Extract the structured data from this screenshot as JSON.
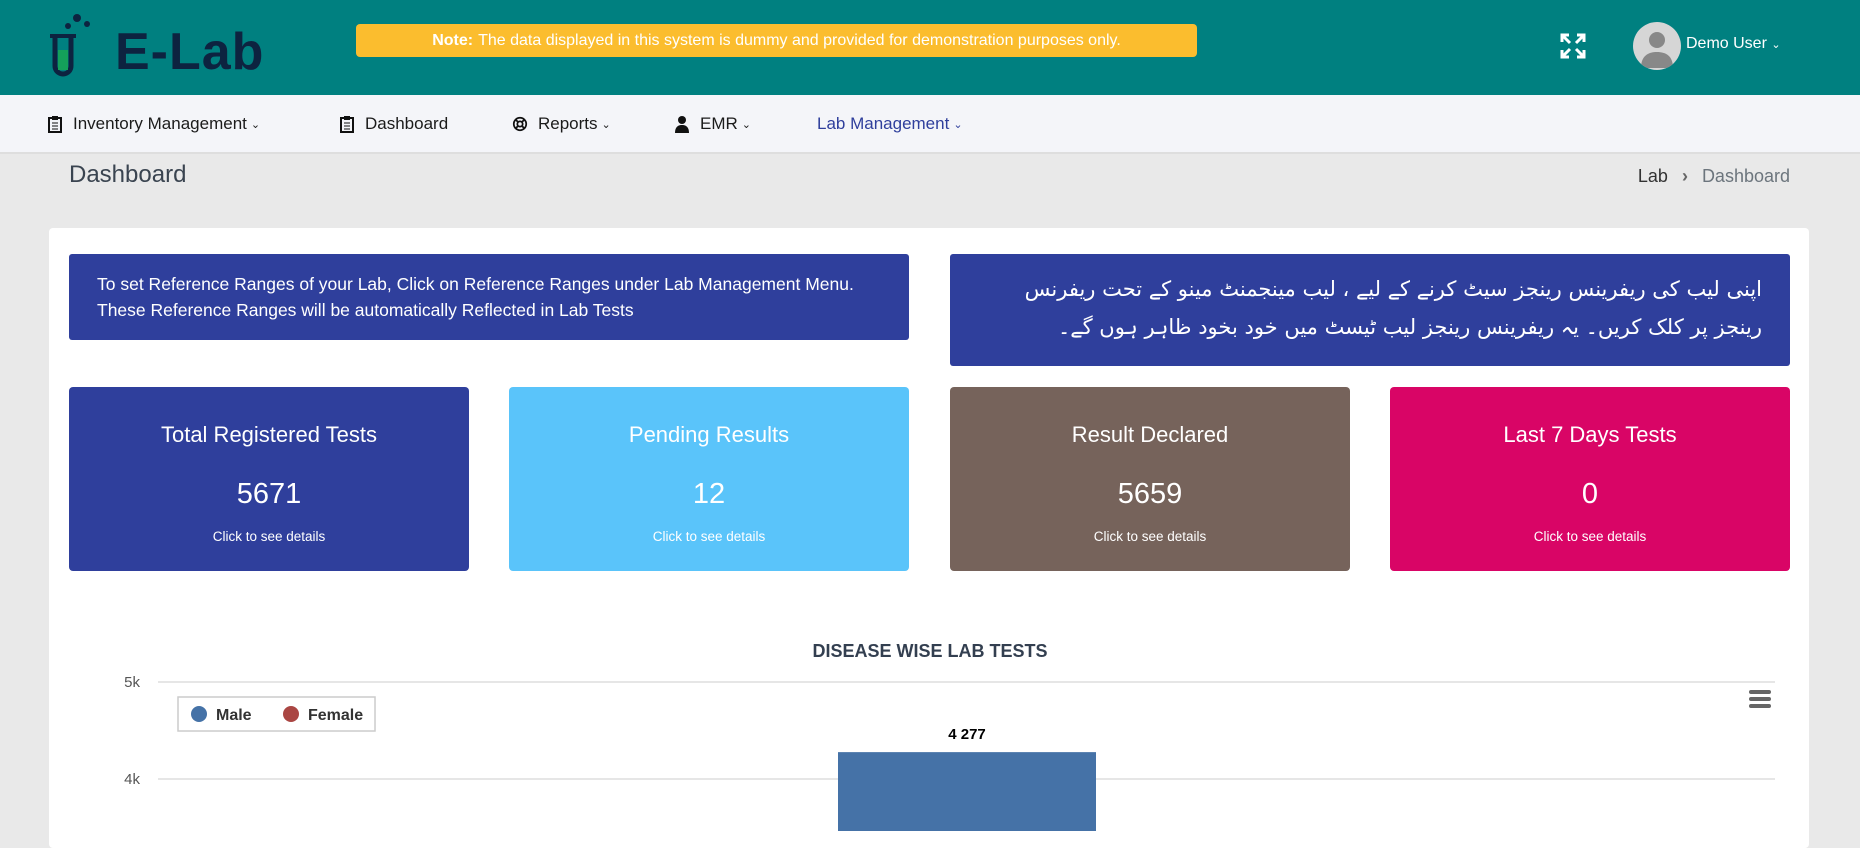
{
  "header": {
    "logo": "E-Lab",
    "note_label": "Note:",
    "note_text": "The data displayed in this system is dummy and provided for demonstration purposes only.",
    "user": "Demo User",
    "icons": [
      "fullscreen-icon",
      "avatar"
    ]
  },
  "nav": [
    {
      "label": "Inventory Management",
      "icon": "clipboard-icon",
      "dropdown": true
    },
    {
      "label": "Dashboard",
      "icon": "clipboard-icon",
      "dropdown": false
    },
    {
      "label": "Reports",
      "icon": "lifebuoy-icon",
      "dropdown": true
    },
    {
      "label": "EMR",
      "icon": "user-icon",
      "dropdown": true
    },
    {
      "label": "Lab Management",
      "dropdown": true,
      "active": true
    }
  ],
  "page": {
    "title": "Dashboard",
    "breadcrumb": [
      "Lab",
      "Dashboard"
    ]
  },
  "info": {
    "en": "To set Reference Ranges of your Lab, Click on Reference Ranges under Lab Management Menu. These Reference Ranges will be automatically Reflected in Lab Tests",
    "ur": "اپنی لیب کی ریفرینس رینجز سیٹ کرنے کے لیے ، لیب مینجمنٹ مینو کے تحت ریفرنس رینجز پر کلک کریں۔ یہ ریفرینس رینجز لیب ٹیسٹ میں خود بخود ظاہر ہوں گے۔"
  },
  "cards": [
    {
      "title": "Total Registered Tests",
      "value": "5671",
      "link": "Click to see details",
      "color": "#2f3f9c"
    },
    {
      "title": "Pending Results",
      "value": "12",
      "link": "Click to see details",
      "color": "#5ac4fa"
    },
    {
      "title": "Result Declared",
      "value": "5659",
      "link": "Click to see details",
      "color": "#76635b"
    },
    {
      "title": "Last 7 Days Tests",
      "value": "0",
      "link": "Click to see details",
      "color": "#d90566"
    }
  ],
  "chart_data": {
    "type": "bar",
    "title": "DISEASE WISE LAB TESTS",
    "yticks": [
      "5k",
      "4k"
    ],
    "ylim_visible": [
      4000,
      5000
    ],
    "grid": true,
    "legend_placement": "top-left",
    "series": [
      {
        "name": "Male",
        "color": "#4572a7",
        "values": [
          4277
        ]
      },
      {
        "name": "Female",
        "color": "#aa4643",
        "values": []
      }
    ],
    "data_labels": [
      "4 277"
    ]
  }
}
